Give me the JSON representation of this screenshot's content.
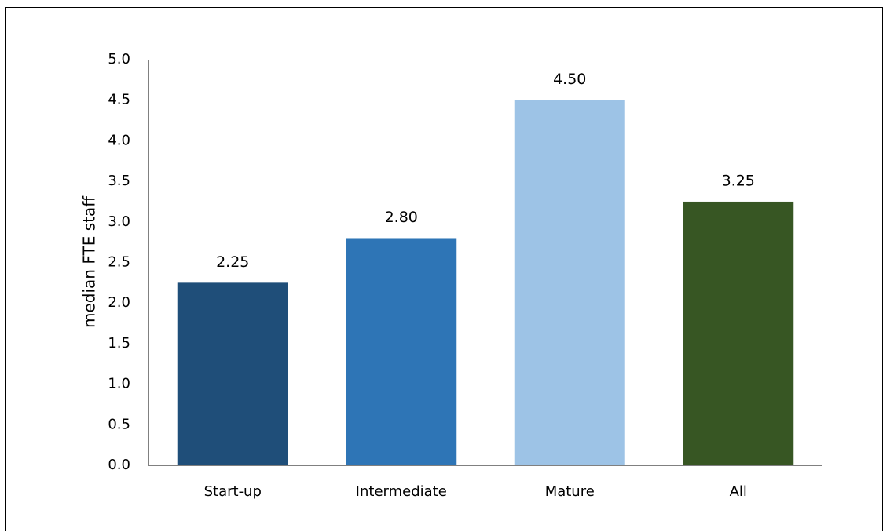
{
  "chart_data": {
    "type": "bar",
    "title": "",
    "xlabel": "",
    "ylabel": "median FTE staff",
    "categories": [
      "Start-up",
      "Intermediate",
      "Mature",
      "All"
    ],
    "values": [
      2.25,
      2.8,
      4.5,
      3.25
    ],
    "data_labels": [
      "2.25",
      "2.80",
      "4.50",
      "3.25"
    ],
    "colors": [
      "#1f4e79",
      "#2e75b6",
      "#9dc3e6",
      "#375623"
    ],
    "ylim": [
      0,
      5
    ],
    "yticks": [
      "0.0",
      "0.5",
      "1.0",
      "1.5",
      "2.0",
      "2.5",
      "3.0",
      "3.5",
      "4.0",
      "4.5",
      "5.0"
    ],
    "grid": false,
    "legend": "none"
  }
}
